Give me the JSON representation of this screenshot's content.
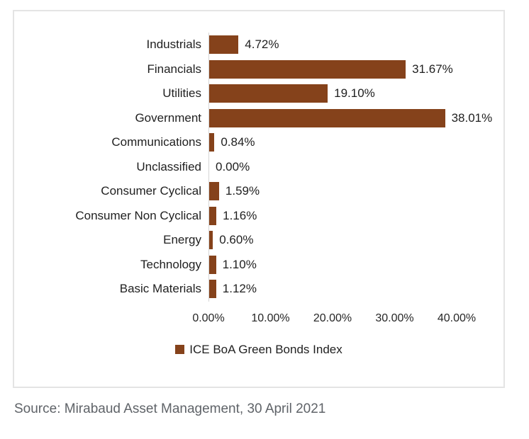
{
  "chart_data": {
    "type": "bar",
    "orientation": "horizontal",
    "categories": [
      "Industrials",
      "Financials",
      "Utilities",
      "Government",
      "Communications",
      "Unclassified",
      "Consumer Cyclical",
      "Consumer Non Cyclical",
      "Energy",
      "Technology",
      "Basic Materials"
    ],
    "values": [
      4.72,
      31.67,
      19.1,
      38.01,
      0.84,
      0.0,
      1.59,
      1.16,
      0.6,
      1.1,
      1.12
    ],
    "value_labels": [
      "4.72%",
      "31.67%",
      "19.10%",
      "38.01%",
      "0.84%",
      "0.00%",
      "1.59%",
      "1.16%",
      "0.60%",
      "1.10%",
      "1.12%"
    ],
    "x_ticks": [
      {
        "value": 0,
        "label": "0.00%"
      },
      {
        "value": 10,
        "label": "10.00%"
      },
      {
        "value": 20,
        "label": "20.00%"
      },
      {
        "value": 30,
        "label": "30.00%"
      },
      {
        "value": 40,
        "label": "40.00%"
      }
    ],
    "xlim": [
      0,
      40
    ],
    "grid": false,
    "legend_position": "bottom",
    "legend": [
      {
        "label": "ICE BoA Green Bonds Index",
        "color": "#85421B"
      }
    ],
    "bar_color": "#85421B"
  },
  "source_note": "Source: Mirabaud Asset Management, 30 April 2021",
  "colors": {
    "bar": "#85421B",
    "axis_line": "#d6d6d6",
    "box_border": "#e4e4e4",
    "label_text": "#1f1f1f",
    "source_text": "#5f6368",
    "background": "#ffffff"
  }
}
